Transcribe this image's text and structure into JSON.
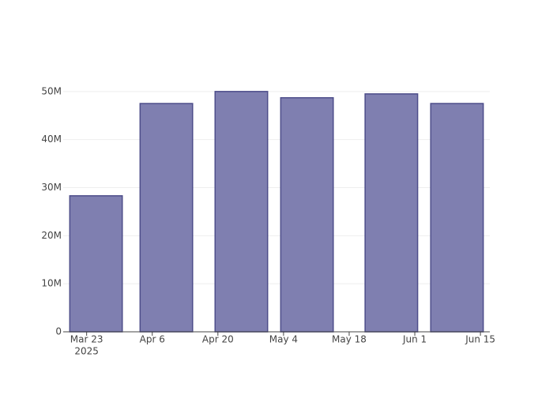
{
  "chart_data": {
    "type": "bar",
    "x": [
      "2025-03-25",
      "2025-04-09",
      "2025-04-25",
      "2025-05-09",
      "2025-05-27",
      "2025-06-10"
    ],
    "values": [
      28300000,
      47500000,
      50000000,
      48700000,
      49500000,
      47500000
    ],
    "color": "#7f7fb0",
    "line_color": "#4d4d8a",
    "xlim": [
      "2025-03-18",
      "2025-06-17"
    ],
    "xticks": [
      {
        "value": "2025-03-23",
        "label": "Mar 23"
      },
      {
        "value": "2025-04-06",
        "label": "Apr 6"
      },
      {
        "value": "2025-04-20",
        "label": "Apr 20"
      },
      {
        "value": "2025-05-04",
        "label": "May 4"
      },
      {
        "value": "2025-05-18",
        "label": "May 18"
      },
      {
        "value": "2025-06-01",
        "label": "Jun 1"
      },
      {
        "value": "2025-06-15",
        "label": "Jun 15"
      }
    ],
    "xtick_year": "2025",
    "ylim": [
      0,
      52600000
    ],
    "yticks": [
      0,
      {
        "value": 10000000,
        "label": "10M"
      },
      {
        "value": 20000000,
        "label": "20M"
      },
      {
        "value": 30000000,
        "label": "30M"
      },
      {
        "value": 40000000,
        "label": "40M"
      },
      {
        "value": 50000000,
        "label": "50M"
      }
    ],
    "grid": true
  }
}
